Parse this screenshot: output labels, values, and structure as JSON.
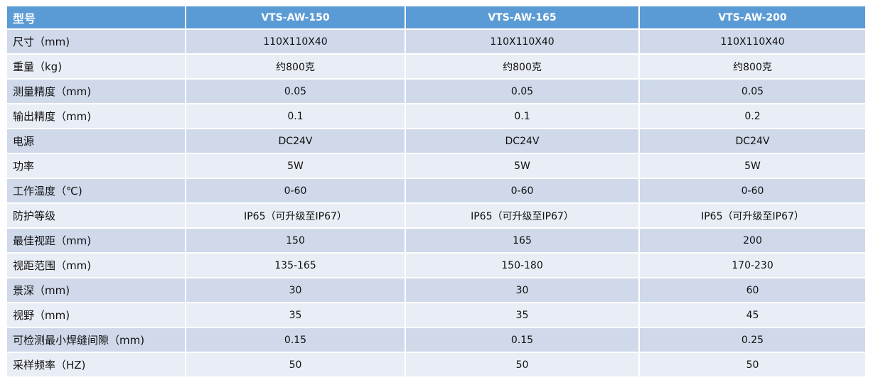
{
  "table": {
    "header": [
      "型号",
      "VTS-AW-150",
      "VTS-AW-165",
      "VTS-AW-200"
    ],
    "rows": [
      [
        "尺寸（mm)",
        "110X110X40",
        "110X110X40",
        "110X110X40"
      ],
      [
        "重量（kg)",
        "约800克",
        "约800克",
        "约800克"
      ],
      [
        "测量精度（mm)",
        "0.05",
        "0.05",
        "0.05"
      ],
      [
        "输出精度（mm)",
        "0.1",
        "0.1",
        "0.2"
      ],
      [
        "电源",
        "DC24V",
        "DC24V",
        "DC24V"
      ],
      [
        "功率",
        "5W",
        "5W",
        "5W"
      ],
      [
        "工作温度（℃)",
        "0-60",
        "0-60",
        "0-60"
      ],
      [
        "防护等级",
        "IP65（可升级至IP67）",
        "IP65（可升级至IP67）",
        "IP65（可升级至IP67）"
      ],
      [
        "最佳视距（mm)",
        "150",
        "165",
        "200"
      ],
      [
        "视距范围（mm)",
        "135-165",
        "150-180",
        "170-230"
      ],
      [
        "景深（mm)",
        "30",
        "30",
        "60"
      ],
      [
        "视野（mm)",
        "35",
        "35",
        "45"
      ],
      [
        "可检测最小焊缝间隙（mm)",
        "0.15",
        "0.15",
        "0.25"
      ],
      [
        "采样频率（HZ)",
        "50",
        "50",
        "50"
      ]
    ]
  },
  "colors": {
    "header_bg": "#5b9bd5",
    "row_odd_bg": "#cfd9ea",
    "row_even_bg": "#e9edf5"
  }
}
